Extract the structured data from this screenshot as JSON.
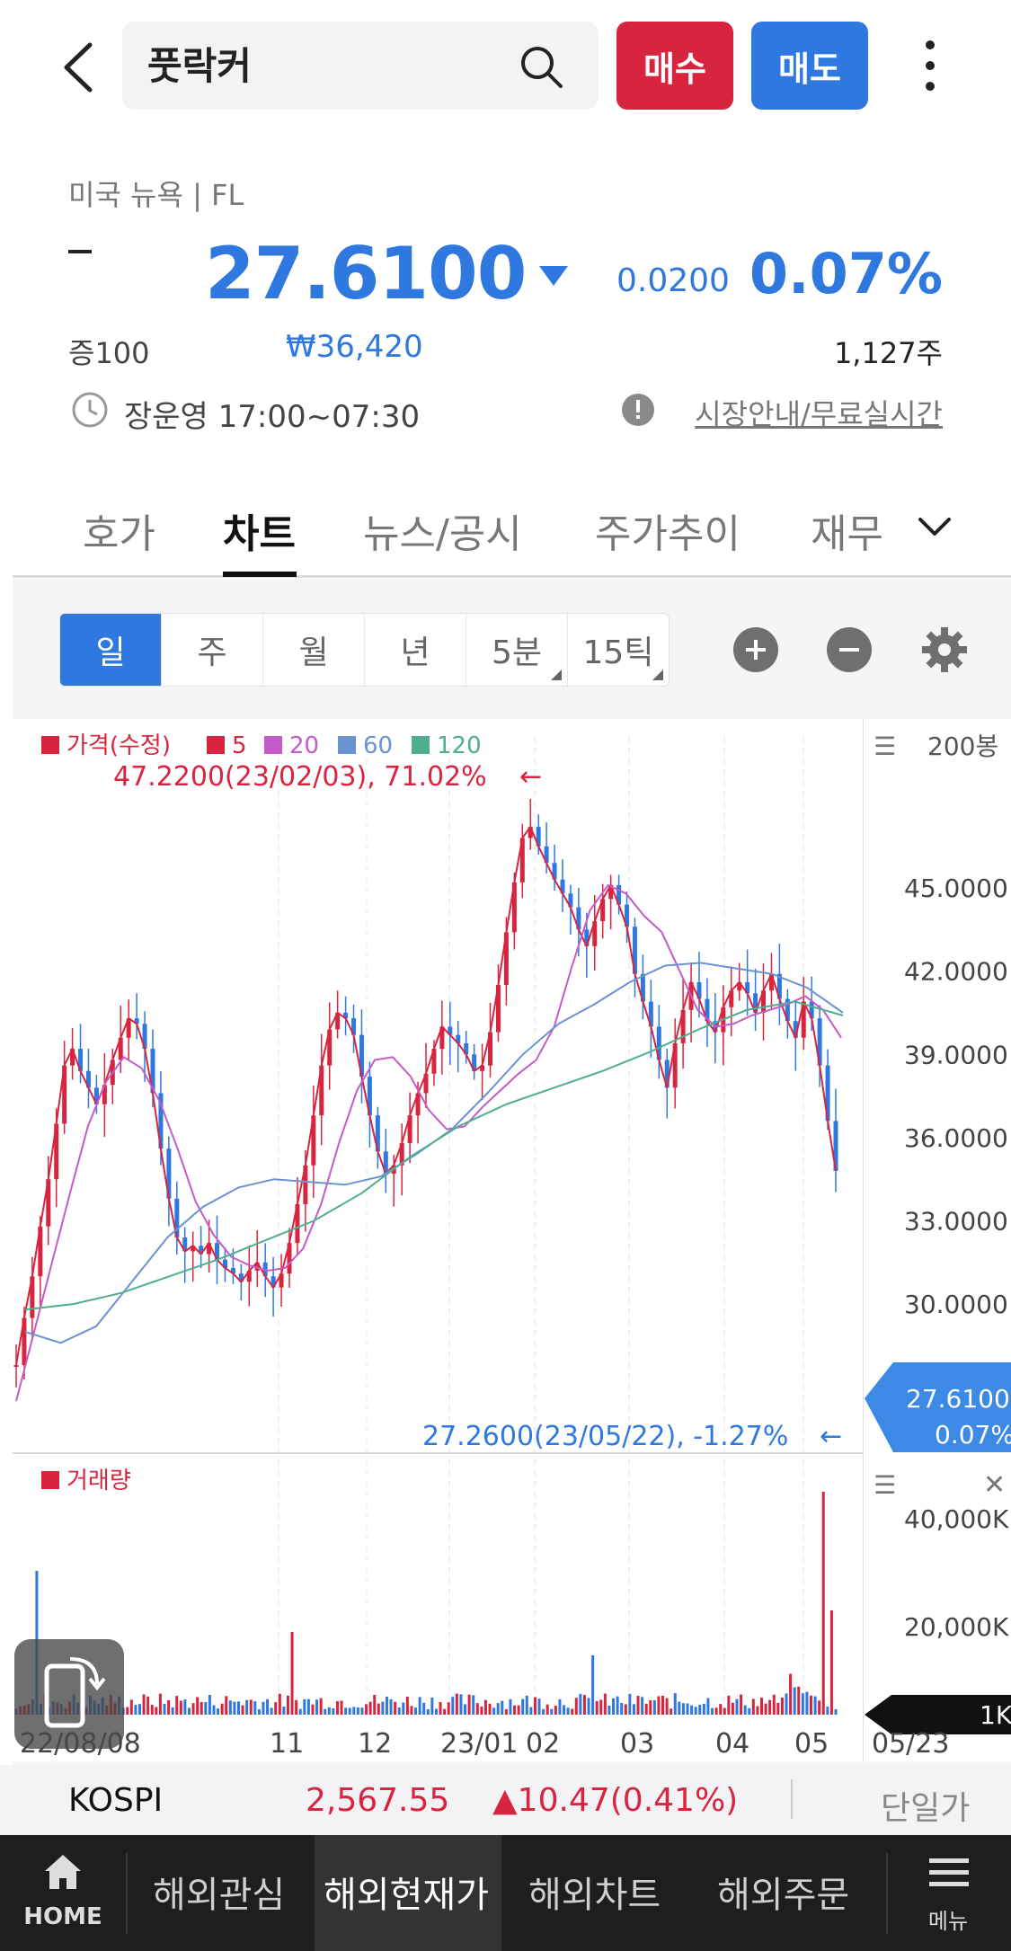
{
  "search": {
    "value": "풋락커"
  },
  "actions": {
    "buy": "매수",
    "sell": "매도"
  },
  "quote": {
    "market": "미국 뉴욕 | FL",
    "price": "27.6100",
    "change": "0.0200",
    "change_pct": "0.07%",
    "margin": "증100",
    "krw_price": "₩36,420",
    "volume": "1,127주",
    "hours": "장운영 17:00~07:30",
    "market_link": "시장안내/무료실시간"
  },
  "tabs": [
    "호가",
    "차트",
    "뉴스/공시",
    "주가추이",
    "재무"
  ],
  "periods": [
    "일",
    "주",
    "월",
    "년",
    "5분",
    "15틱"
  ],
  "colors": {
    "up": "#d8253f",
    "down": "#2f78e0",
    "ma5": "#d8253f",
    "ma20": "#c45bc8",
    "ma60": "#6b93cf",
    "ma120": "#4fae8f"
  },
  "chart_data": {
    "type": "line",
    "legend": [
      {
        "name": "가격(수정)",
        "color": "#d8253f"
      },
      {
        "name": "5",
        "color": "#d8253f"
      },
      {
        "name": "20",
        "color": "#c45bc8"
      },
      {
        "name": "60",
        "color": "#6b93cf"
      },
      {
        "name": "120",
        "color": "#4fae8f"
      }
    ],
    "bar_count": "200봉",
    "x_ticks": [
      "22/08/08",
      "11",
      "12",
      "23/01",
      "02",
      "03",
      "04",
      "05",
      "05/23"
    ],
    "y_ticks": [
      "45.0000",
      "42.0000",
      "39.0000",
      "36.0000",
      "33.0000",
      "30.0000"
    ],
    "ylim": [
      25.5,
      48.5
    ],
    "high_annotation": "47.2200(23/02/03), 71.02%",
    "low_annotation": "27.2600(23/05/22), -1.27%",
    "current_label": {
      "price": "27.6100",
      "pct": "0.07%"
    },
    "price_series": [
      27.8,
      29.5,
      31.0,
      32.8,
      34.5,
      36.5,
      38.6,
      39.2,
      38.4,
      37.8,
      37.2,
      37.9,
      38.8,
      39.6,
      40.3,
      40.1,
      39.2,
      37.6,
      35.6,
      33.8,
      32.4,
      31.9,
      32.1,
      31.8,
      32.2,
      31.6,
      31.3,
      31.1,
      30.8,
      31.2,
      31.5,
      31.0,
      30.6,
      31.1,
      32.2,
      33.6,
      35.0,
      36.8,
      38.6,
      39.9,
      40.5,
      40.3,
      39.7,
      38.2,
      36.8,
      35.5,
      34.7,
      35.0,
      35.8,
      36.8,
      37.6,
      38.3,
      39.2,
      40.0,
      39.7,
      39.4,
      39.0,
      38.4,
      38.6,
      39.8,
      41.5,
      43.4,
      45.2,
      46.8,
      47.2,
      46.5,
      45.9,
      45.3,
      44.8,
      44.3,
      43.5,
      42.9,
      43.8,
      44.6,
      45.1,
      44.4,
      43.6,
      41.9,
      40.9,
      40.0,
      38.8,
      37.8,
      39.4,
      40.6,
      41.6,
      41.0,
      40.2,
      39.8,
      40.7,
      41.3,
      41.6,
      41.2,
      40.5,
      41.3,
      41.9,
      41.0,
      40.2,
      39.6,
      40.9,
      40.3,
      38.6,
      36.6,
      34.8
    ],
    "ma20_series": [
      26.5,
      29.0,
      31.5,
      34.0,
      36.4,
      38.0,
      38.9,
      38.5,
      37.3,
      35.6,
      33.7,
      32.5,
      31.7,
      31.4,
      31.2,
      31.3,
      32.0,
      33.6,
      35.8,
      37.7,
      38.8,
      38.9,
      38.2,
      37.0,
      36.3,
      36.4,
      37.1,
      37.7,
      38.3,
      38.8,
      40.0,
      42.2,
      44.2,
      45.1,
      44.8,
      44.0,
      43.4,
      42.0,
      40.6,
      40.0,
      40.1,
      40.4,
      40.6,
      40.8,
      41.1,
      40.6,
      39.6
    ],
    "ma60_series": [
      29.0,
      28.6,
      29.2,
      30.8,
      32.4,
      33.5,
      34.2,
      34.5,
      34.4,
      34.3,
      34.6,
      35.4,
      36.3,
      37.6,
      39.0,
      40.1,
      40.8,
      41.6,
      42.2,
      42.3,
      42.1,
      41.9,
      41.4,
      40.5
    ],
    "ma120_series": [
      29.8,
      30.0,
      30.4,
      31.0,
      31.6,
      32.3,
      33.0,
      34.0,
      35.3,
      36.4,
      37.2,
      37.8,
      38.4,
      39.1,
      39.9,
      40.6,
      40.9,
      40.4
    ],
    "volume_legend": "거래량",
    "volume_ticks": [
      "40,000K",
      "20,000K",
      "1K"
    ]
  },
  "kospi": {
    "name": "KOSPI",
    "value": "2,567.55",
    "change": "▲10.47(0.41%)",
    "toggle": "단일가"
  },
  "nav": {
    "home": "HOME",
    "items": [
      "해외관심",
      "해외현재가",
      "해외차트",
      "해외주문"
    ],
    "menu": "메뉴"
  }
}
